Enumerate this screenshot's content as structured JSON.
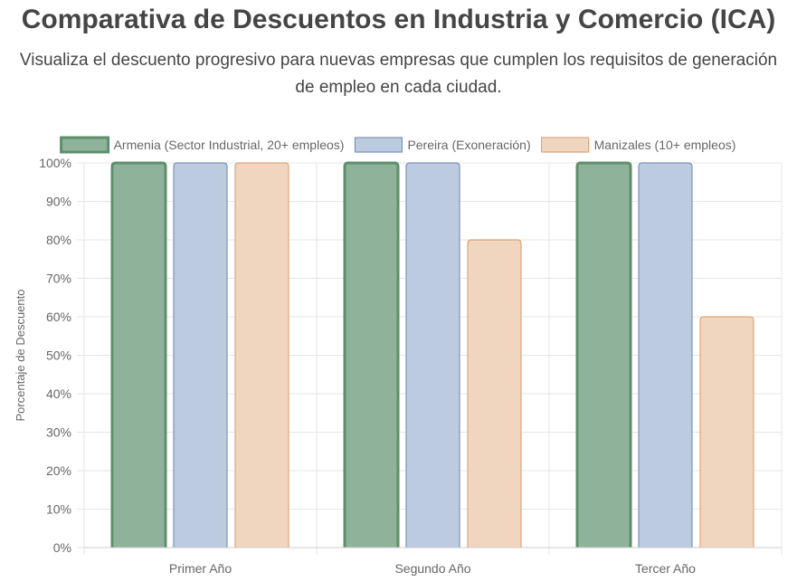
{
  "header": {
    "title": "Comparativa de Descuentos en Industria y Comercio (ICA)",
    "subtitle": "Visualiza el descuento progresivo para nuevas empresas que cumplen los requisitos de generación de empleo en cada ciudad."
  },
  "chart_data": {
    "type": "bar",
    "categories": [
      "Primer Año",
      "Segundo Año",
      "Tercer Año"
    ],
    "series": [
      {
        "name": "Armenia (Sector Industrial, 20+ empleos)",
        "values": [
          100,
          100,
          100
        ],
        "fill": "#8fb39a",
        "stroke": "#5e8f6b"
      },
      {
        "name": "Pereira (Exoneración)",
        "values": [
          100,
          100,
          100
        ],
        "fill": "#bccbe0",
        "stroke": "#7d93b8"
      },
      {
        "name": "Manizales (10+ empleos)",
        "values": [
          100,
          80,
          60
        ],
        "fill": "#f1d6bf",
        "stroke": "#dda57c"
      }
    ],
    "ylabel": "Porcentaje de Descuento",
    "xlabel": "",
    "ylim": [
      0,
      100
    ],
    "ytick_step": 10,
    "ytick_suffix": "%",
    "grid": true,
    "legend_position": "top"
  }
}
